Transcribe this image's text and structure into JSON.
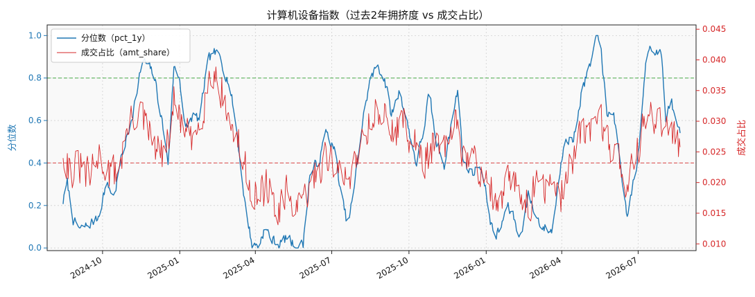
{
  "chart_data": {
    "type": "line",
    "title": "计算机设备指数（过去2年拥挤度 vs 成交占比）",
    "ylabel_left": "分位数",
    "ylabel_right": "成交占比",
    "x_start": "2024-08-15",
    "x_end": "2026-08-20",
    "xlim": [
      "2024-07-27",
      "2026-09-08"
    ],
    "ylim_left": [
      -0.0125,
      1.05
    ],
    "ylim_right": [
      0.0089,
      0.0457
    ],
    "xticks": [
      {
        "date": "2024-10-01",
        "label": "2024-10"
      },
      {
        "date": "2025-01-01",
        "label": "2025-01"
      },
      {
        "date": "2025-04-01",
        "label": "2025-04"
      },
      {
        "date": "2025-07-01",
        "label": "2025-07"
      },
      {
        "date": "2025-10-01",
        "label": "2025-10"
      },
      {
        "date": "2026-01-01",
        "label": "2026-01"
      },
      {
        "date": "2026-04-01",
        "label": "2026-04"
      },
      {
        "date": "2026-07-01",
        "label": "2026-07"
      }
    ],
    "yticks_left": [
      "0.0",
      "0.2",
      "0.4",
      "0.6",
      "0.8",
      "1.0"
    ],
    "yticks_right": [
      "0.010",
      "0.015",
      "0.020",
      "0.025",
      "0.030",
      "0.035",
      "0.040",
      "0.045"
    ],
    "hlines": [
      {
        "y": 0.8,
        "color": "#2ca02c",
        "style": "dashed"
      },
      {
        "y": 0.4,
        "color": "#d62728",
        "style": "dashed"
      }
    ],
    "grid": true,
    "legend_position": "top-left",
    "series": [
      {
        "name": "分位数（pct_1y）",
        "axis": "left",
        "color": "#1f77b4",
        "knots": [
          [
            "2024-08-15",
            0.22
          ],
          [
            "2024-08-20",
            0.3
          ],
          [
            "2024-08-28",
            0.12
          ],
          [
            "2024-09-05",
            0.08
          ],
          [
            "2024-09-15",
            0.11
          ],
          [
            "2024-09-25",
            0.14
          ],
          [
            "2024-10-05",
            0.3
          ],
          [
            "2024-10-15",
            0.25
          ],
          [
            "2024-10-25",
            0.45
          ],
          [
            "2024-11-01",
            0.55
          ],
          [
            "2024-11-10",
            0.72
          ],
          [
            "2024-11-18",
            0.88
          ],
          [
            "2024-11-25",
            0.85
          ],
          [
            "2024-12-02",
            0.8
          ],
          [
            "2024-12-10",
            0.62
          ],
          [
            "2024-12-18",
            0.4
          ],
          [
            "2024-12-25",
            0.85
          ],
          [
            "2025-01-01",
            0.8
          ],
          [
            "2025-01-08",
            0.55
          ],
          [
            "2025-01-16",
            0.62
          ],
          [
            "2025-01-25",
            0.6
          ],
          [
            "2025-02-02",
            0.85
          ],
          [
            "2025-02-10",
            0.92
          ],
          [
            "2025-02-20",
            0.88
          ],
          [
            "2025-03-01",
            0.78
          ],
          [
            "2025-03-10",
            0.55
          ],
          [
            "2025-03-20",
            0.2
          ],
          [
            "2025-03-28",
            0.02
          ],
          [
            "2025-04-05",
            0.01
          ],
          [
            "2025-04-12",
            0.1
          ],
          [
            "2025-04-20",
            0.04
          ],
          [
            "2025-04-30",
            0.02
          ],
          [
            "2025-05-10",
            0.05
          ],
          [
            "2025-05-18",
            0.01
          ],
          [
            "2025-05-28",
            0.02
          ],
          [
            "2025-06-05",
            0.35
          ],
          [
            "2025-06-15",
            0.4
          ],
          [
            "2025-06-25",
            0.55
          ],
          [
            "2025-07-05",
            0.45
          ],
          [
            "2025-07-12",
            0.25
          ],
          [
            "2025-07-20",
            0.1
          ],
          [
            "2025-07-28",
            0.28
          ],
          [
            "2025-08-05",
            0.55
          ],
          [
            "2025-08-15",
            0.78
          ],
          [
            "2025-08-25",
            0.86
          ],
          [
            "2025-09-02",
            0.8
          ],
          [
            "2025-09-10",
            0.62
          ],
          [
            "2025-09-20",
            0.75
          ],
          [
            "2025-10-01",
            0.55
          ],
          [
            "2025-10-10",
            0.4
          ],
          [
            "2025-10-18",
            0.55
          ],
          [
            "2025-10-25",
            0.72
          ],
          [
            "2025-11-02",
            0.5
          ],
          [
            "2025-11-12",
            0.4
          ],
          [
            "2025-11-20",
            0.58
          ],
          [
            "2025-11-28",
            0.74
          ],
          [
            "2025-12-05",
            0.4
          ],
          [
            "2025-12-15",
            0.35
          ],
          [
            "2025-12-25",
            0.4
          ],
          [
            "2026-01-01",
            0.25
          ],
          [
            "2026-01-10",
            0.05
          ],
          [
            "2026-01-18",
            0.08
          ],
          [
            "2026-01-25",
            0.2
          ],
          [
            "2026-02-02",
            0.15
          ],
          [
            "2026-02-10",
            0.05
          ],
          [
            "2026-02-20",
            0.25
          ],
          [
            "2026-03-01",
            0.15
          ],
          [
            "2026-03-10",
            0.1
          ],
          [
            "2026-03-20",
            0.08
          ],
          [
            "2026-03-28",
            0.3
          ],
          [
            "2026-04-05",
            0.55
          ],
          [
            "2026-04-15",
            0.5
          ],
          [
            "2026-04-25",
            0.75
          ],
          [
            "2026-05-05",
            0.85
          ],
          [
            "2026-05-12",
            0.98
          ],
          [
            "2026-05-18",
            0.95
          ],
          [
            "2026-05-25",
            0.6
          ],
          [
            "2026-06-02",
            0.65
          ],
          [
            "2026-06-10",
            0.35
          ],
          [
            "2026-06-18",
            0.15
          ],
          [
            "2026-06-25",
            0.3
          ],
          [
            "2026-07-02",
            0.45
          ],
          [
            "2026-07-10",
            0.88
          ],
          [
            "2026-07-15",
            0.98
          ],
          [
            "2026-07-20",
            0.92
          ],
          [
            "2026-07-28",
            0.95
          ],
          [
            "2026-08-03",
            0.6
          ],
          [
            "2026-08-10",
            0.68
          ],
          [
            "2026-08-15",
            0.58
          ],
          [
            "2026-08-20",
            0.56
          ]
        ]
      },
      {
        "name": "成交占比（amt_share）",
        "axis": "right",
        "color": "#d62728",
        "knots": [
          [
            "2024-08-15",
            0.0255
          ],
          [
            "2024-08-25",
            0.0215
          ],
          [
            "2024-09-05",
            0.0225
          ],
          [
            "2024-09-15",
            0.0205
          ],
          [
            "2024-09-28",
            0.0245
          ],
          [
            "2024-10-10",
            0.021
          ],
          [
            "2024-10-20",
            0.0225
          ],
          [
            "2024-11-01",
            0.029
          ],
          [
            "2024-11-12",
            0.032
          ],
          [
            "2024-11-25",
            0.028
          ],
          [
            "2024-12-05",
            0.025
          ],
          [
            "2024-12-15",
            0.024
          ],
          [
            "2024-12-25",
            0.033
          ],
          [
            "2025-01-02",
            0.03
          ],
          [
            "2025-01-15",
            0.026
          ],
          [
            "2025-01-28",
            0.032
          ],
          [
            "2025-02-08",
            0.0385
          ],
          [
            "2025-02-18",
            0.036
          ],
          [
            "2025-03-01",
            0.03
          ],
          [
            "2025-03-12",
            0.026
          ],
          [
            "2025-03-22",
            0.021
          ],
          [
            "2025-04-05",
            0.017
          ],
          [
            "2025-04-15",
            0.02
          ],
          [
            "2025-04-28",
            0.014
          ],
          [
            "2025-05-10",
            0.0185
          ],
          [
            "2025-05-22",
            0.015
          ],
          [
            "2025-06-02",
            0.018
          ],
          [
            "2025-06-15",
            0.0225
          ],
          [
            "2025-06-28",
            0.025
          ],
          [
            "2025-07-08",
            0.0215
          ],
          [
            "2025-07-20",
            0.02
          ],
          [
            "2025-08-02",
            0.026
          ],
          [
            "2025-08-15",
            0.03
          ],
          [
            "2025-08-28",
            0.032
          ],
          [
            "2025-09-10",
            0.028
          ],
          [
            "2025-09-22",
            0.03
          ],
          [
            "2025-10-05",
            0.027
          ],
          [
            "2025-10-18",
            0.0235
          ],
          [
            "2025-10-30",
            0.026
          ],
          [
            "2025-11-12",
            0.025
          ],
          [
            "2025-11-25",
            0.029
          ],
          [
            "2025-12-08",
            0.024
          ],
          [
            "2025-12-20",
            0.023
          ],
          [
            "2026-01-02",
            0.021
          ],
          [
            "2026-01-15",
            0.015
          ],
          [
            "2026-01-28",
            0.0205
          ],
          [
            "2026-02-10",
            0.0185
          ],
          [
            "2026-02-22",
            0.017
          ],
          [
            "2026-03-05",
            0.02
          ],
          [
            "2026-03-18",
            0.019
          ],
          [
            "2026-03-30",
            0.017
          ],
          [
            "2026-04-10",
            0.023
          ],
          [
            "2026-04-22",
            0.027
          ],
          [
            "2026-05-05",
            0.029
          ],
          [
            "2026-05-15",
            0.032
          ],
          [
            "2026-05-25",
            0.027
          ],
          [
            "2026-06-05",
            0.025
          ],
          [
            "2026-06-18",
            0.02
          ],
          [
            "2026-06-30",
            0.0245
          ],
          [
            "2026-07-10",
            0.032
          ],
          [
            "2026-07-20",
            0.029
          ],
          [
            "2026-07-30",
            0.03
          ],
          [
            "2026-08-08",
            0.026
          ],
          [
            "2026-08-15",
            0.029
          ],
          [
            "2026-08-20",
            0.0255
          ]
        ]
      }
    ]
  }
}
